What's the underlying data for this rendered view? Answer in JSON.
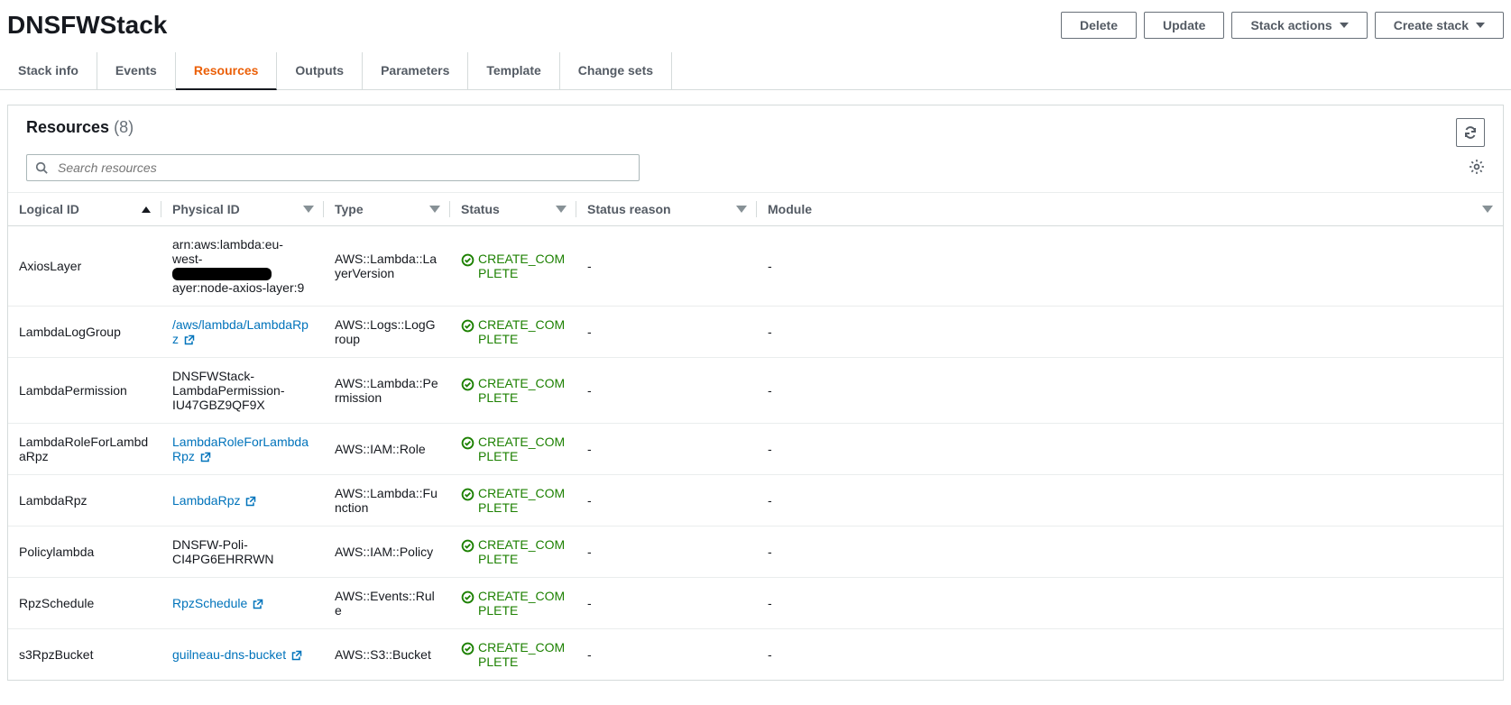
{
  "header": {
    "stack_name": "DNSFWStack",
    "buttons": {
      "delete": "Delete",
      "update": "Update",
      "stack_actions": "Stack actions",
      "create_stack": "Create stack"
    }
  },
  "tabs": [
    {
      "id": "stack-info",
      "label": "Stack info",
      "active": false
    },
    {
      "id": "events",
      "label": "Events",
      "active": false
    },
    {
      "id": "resources",
      "label": "Resources",
      "active": true
    },
    {
      "id": "outputs",
      "label": "Outputs",
      "active": false
    },
    {
      "id": "parameters",
      "label": "Parameters",
      "active": false
    },
    {
      "id": "template",
      "label": "Template",
      "active": false
    },
    {
      "id": "change-sets",
      "label": "Change sets",
      "active": false
    }
  ],
  "panel": {
    "title": "Resources",
    "count": "(8)",
    "search_placeholder": "Search resources"
  },
  "columns": {
    "logical_id": "Logical ID",
    "physical_id": "Physical ID",
    "type": "Type",
    "status": "Status",
    "status_reason": "Status reason",
    "module": "Module"
  },
  "status_label": "CREATE_COMPLETE",
  "status_color": "#1d8102",
  "rows": [
    {
      "logical_id": "AxiosLayer",
      "physical_text_pre": "arn:aws:lambda:eu-west-",
      "physical_redacted": true,
      "physical_text_post": "ayer:node-axios-layer:9",
      "physical_link": false,
      "type": "AWS::Lambda::LayerVersion",
      "status_reason": "-",
      "module": "-"
    },
    {
      "logical_id": "LambdaLogGroup",
      "physical_text": "/aws/lambda/LambdaRpz",
      "physical_link": true,
      "type": "AWS::Logs::LogGroup",
      "status_reason": "-",
      "module": "-"
    },
    {
      "logical_id": "LambdaPermission",
      "physical_text": "DNSFWStack-LambdaPermission-IU47GBZ9QF9X",
      "physical_link": false,
      "type": "AWS::Lambda::Permission",
      "status_reason": "-",
      "module": "-"
    },
    {
      "logical_id": "LambdaRoleForLambdaRpz",
      "physical_text": "LambdaRoleForLambdaRpz",
      "physical_link": true,
      "type": "AWS::IAM::Role",
      "status_reason": "-",
      "module": "-"
    },
    {
      "logical_id": "LambdaRpz",
      "physical_text": "LambdaRpz",
      "physical_link": true,
      "type": "AWS::Lambda::Function",
      "status_reason": "-",
      "module": "-"
    },
    {
      "logical_id": "Policylambda",
      "physical_text": "DNSFW-Poli-CI4PG6EHRRWN",
      "physical_link": false,
      "type": "AWS::IAM::Policy",
      "status_reason": "-",
      "module": "-"
    },
    {
      "logical_id": "RpzSchedule",
      "physical_text": "RpzSchedule",
      "physical_link": true,
      "type": "AWS::Events::Rule",
      "status_reason": "-",
      "module": "-"
    },
    {
      "logical_id": "s3RpzBucket",
      "physical_text": "guilneau-dns-bucket",
      "physical_link": true,
      "type": "AWS::S3::Bucket",
      "status_reason": "-",
      "module": "-"
    }
  ]
}
